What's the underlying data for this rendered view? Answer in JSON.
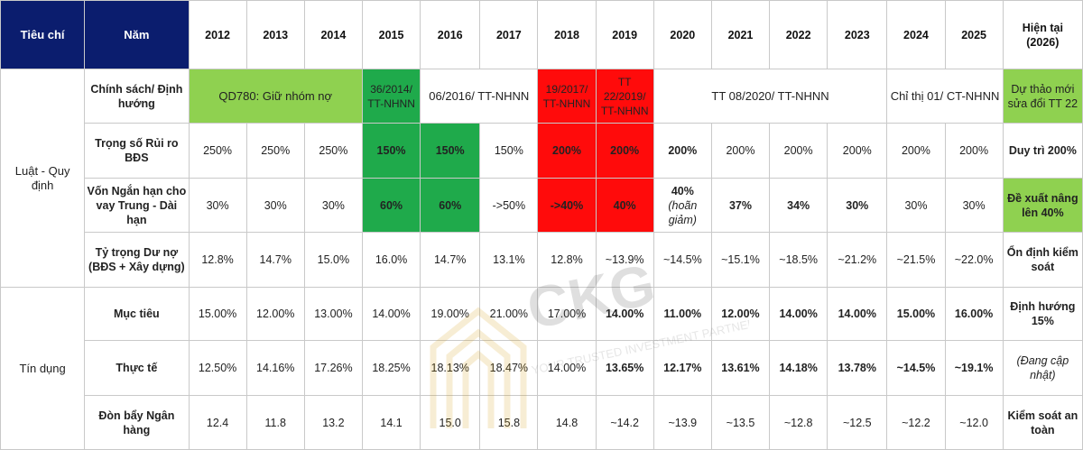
{
  "header": {
    "criteria": "Tiêu chí",
    "year": "Năm",
    "years": [
      "2012",
      "2013",
      "2014",
      "2015",
      "2016",
      "2017",
      "2018",
      "2019",
      "2020",
      "2021",
      "2022",
      "2023",
      "2024",
      "2025"
    ],
    "current": "Hiện tại (2026)"
  },
  "groups": {
    "law": "Luật - Quy định",
    "credit": "Tín dụng"
  },
  "policy": {
    "label": "Chính sách/ Định hướng",
    "qd780": "QD780: Giữ nhóm nợ",
    "tt36": "36/2014/ TT-NHNN",
    "tt06": "06/2016/ TT-NHNN",
    "tt19": "19/2017/ TT-NHNN",
    "tt22": "TT 22/2019/ TT-NHNN",
    "tt08": "TT 08/2020/ TT-NHNN",
    "ct01": "Chỉ thị 01/ CT-NHNN",
    "current": "Dự thảo mới sửa đổi TT 22"
  },
  "rows": {
    "risk": {
      "label": "Trọng số Rủi ro BĐS",
      "values": [
        "250%",
        "250%",
        "250%",
        "150%",
        "150%",
        "150%",
        "200%",
        "200%",
        "200%",
        "200%",
        "200%",
        "200%",
        "200%",
        "200%"
      ],
      "current": "Duy trì 200%"
    },
    "funding": {
      "label": "Vốn Ngắn hạn cho vay Trung - Dài hạn",
      "values": [
        "30%",
        "30%",
        "30%",
        "60%",
        "60%",
        "->50%",
        "->40%",
        "40%",
        "",
        "37%",
        "34%",
        "30%",
        "30%",
        "30%"
      ],
      "v2020_main": "40%",
      "v2020_note": "(hoãn giảm)",
      "current": "Đề xuất nâng lên 40%"
    },
    "share": {
      "label": "Tỷ trọng Dư nợ (BĐS + Xây dựng)",
      "values": [
        "12.8%",
        "14.7%",
        "15.0%",
        "16.0%",
        "14.7%",
        "13.1%",
        "12.8%",
        "~13.9%",
        "~14.5%",
        "~15.1%",
        "~18.5%",
        "~21.2%",
        "~21.5%",
        "~22.0%"
      ],
      "current": "Ổn định kiểm soát"
    },
    "target": {
      "label": "Mục tiêu",
      "values": [
        "15.00%",
        "12.00%",
        "13.00%",
        "14.00%",
        "19.00%",
        "21.00%",
        "17.00%",
        "14.00%",
        "11.00%",
        "12.00%",
        "14.00%",
        "14.00%",
        "15.00%",
        "16.00%"
      ],
      "current": "Định hướng 15%"
    },
    "actual": {
      "label": "Thực tế",
      "values": [
        "12.50%",
        "14.16%",
        "17.26%",
        "18.25%",
        "18.13%",
        "18.47%",
        "14.00%",
        "13.65%",
        "12.17%",
        "13.61%",
        "14.18%",
        "13.78%",
        "~14.5%",
        "~19.1%"
      ],
      "current": "(Đang cập nhật)"
    },
    "leverage": {
      "label": "Đòn bẩy Ngân hàng",
      "values": [
        "12.4",
        "11.8",
        "13.2",
        "14.1",
        "15.0",
        "15.8",
        "14.8",
        "~14.2",
        "~13.9",
        "~13.5",
        "~12.8",
        "~12.5",
        "~12.2",
        "~12.0"
      ],
      "current": "Kiểm soát an toàn"
    }
  },
  "watermark": {
    "brand": "CKG",
    "tagline": "YOUR TRUSTED INVESTMENT PARTNER"
  },
  "colors": {
    "header_dark": "#0b1d6e",
    "light_green": "#8fd150",
    "dark_green": "#1faa4b",
    "red": "#ff0b0b"
  }
}
